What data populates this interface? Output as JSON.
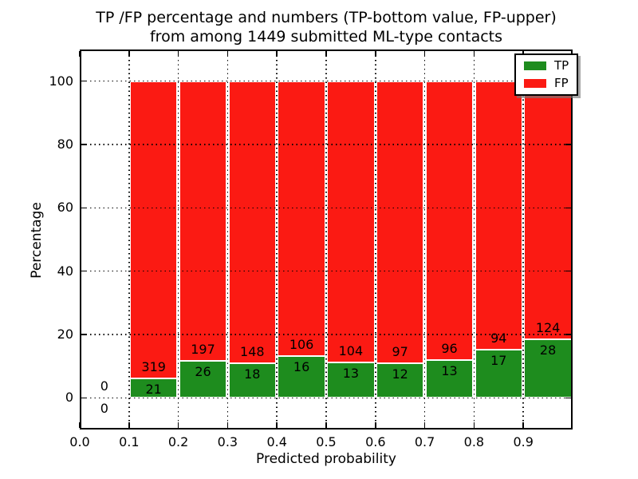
{
  "title": {
    "line1": "TP /FP percentage and numbers (TP-bottom value, FP-upper)",
    "line2": "from among 1449 submitted ML-type contacts"
  },
  "legend": {
    "position": "upper right",
    "entries": [
      {
        "label": "TP",
        "color": "#1e8c1e"
      },
      {
        "label": "FP",
        "color": "#fb1a13"
      }
    ]
  },
  "chart_data": {
    "type": "bar",
    "stacked": true,
    "normalized": "each bin scaled to 100%, TP segment bottom, FP segment top",
    "title": "TP /FP percentage and numbers (TP-bottom value, FP-upper) from among 1449 submitted ML-type contacts",
    "xlabel": "Predicted probability",
    "ylabel": "Percentage",
    "total_contacts": 1449,
    "xlim": [
      0.0,
      1.0
    ],
    "ylim": [
      -10,
      110
    ],
    "xtick_labels": [
      "0.0",
      "0.1",
      "0.2",
      "0.3",
      "0.4",
      "0.5",
      "0.6",
      "0.7",
      "0.8",
      "0.9"
    ],
    "ytick_values": [
      0,
      20,
      40,
      60,
      80,
      100
    ],
    "ytick_labels": [
      "0",
      "20",
      "40",
      "60",
      "80",
      "100"
    ],
    "grid": "dotted black, both axes, drawn over bars",
    "legend_entries": [
      "TP",
      "FP"
    ],
    "bins": [
      {
        "range": [
          0.0,
          0.1
        ],
        "tp": 0,
        "fp": 0,
        "tp_pct": 0,
        "fp_pct": 0
      },
      {
        "range": [
          0.1,
          0.2
        ],
        "tp": 21,
        "fp": 319,
        "tp_pct": 6.18,
        "fp_pct": 93.82
      },
      {
        "range": [
          0.2,
          0.3
        ],
        "tp": 26,
        "fp": 197,
        "tp_pct": 11.66,
        "fp_pct": 88.34
      },
      {
        "range": [
          0.3,
          0.4
        ],
        "tp": 18,
        "fp": 148,
        "tp_pct": 10.84,
        "fp_pct": 89.16
      },
      {
        "range": [
          0.4,
          0.5
        ],
        "tp": 16,
        "fp": 106,
        "tp_pct": 13.11,
        "fp_pct": 86.89
      },
      {
        "range": [
          0.5,
          0.6
        ],
        "tp": 13,
        "fp": 104,
        "tp_pct": 11.11,
        "fp_pct": 88.89
      },
      {
        "range": [
          0.6,
          0.7
        ],
        "tp": 12,
        "fp": 97,
        "tp_pct": 11.01,
        "fp_pct": 88.99
      },
      {
        "range": [
          0.7,
          0.8
        ],
        "tp": 13,
        "fp": 96,
        "tp_pct": 11.93,
        "fp_pct": 88.07
      },
      {
        "range": [
          0.8,
          0.9
        ],
        "tp": 17,
        "fp": 94,
        "tp_pct": 15.32,
        "fp_pct": 84.68
      },
      {
        "range": [
          0.9,
          1.0
        ],
        "tp": 28,
        "fp": 124,
        "tp_pct": 18.42,
        "fp_pct": 81.58
      }
    ],
    "colors": {
      "tp": "#1e8c1e",
      "fp": "#fb1a13",
      "bar_edge": "#ffffff",
      "grid": "#000000",
      "spine": "#000000",
      "text": "#000000",
      "background": "#ffffff"
    }
  }
}
